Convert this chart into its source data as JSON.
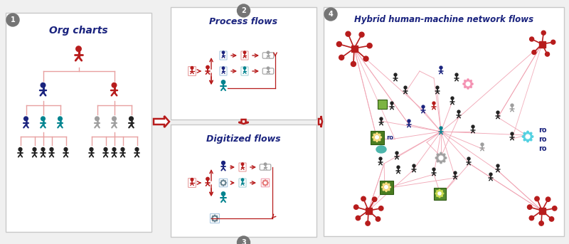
{
  "bg_color": "#f0f0f0",
  "panel_bg": "#ffffff",
  "panel_border": "#c8c8c8",
  "title_color": "#1a237e",
  "red_color": "#b71c1c",
  "pink_color": "#e8a0a0",
  "dark_blue": "#1a237e",
  "teal": "#00838f",
  "gray": "#9e9e9e",
  "black": "#222222",
  "green": "#4a7c20",
  "light_green": "#7cb342",
  "badge_bg": "#757575",
  "panel1_title": "Org charts",
  "panel2_title": "Process flows",
  "panel3_title": "Digitized flows",
  "panel4_title": "Hybrid human-machine network flows"
}
